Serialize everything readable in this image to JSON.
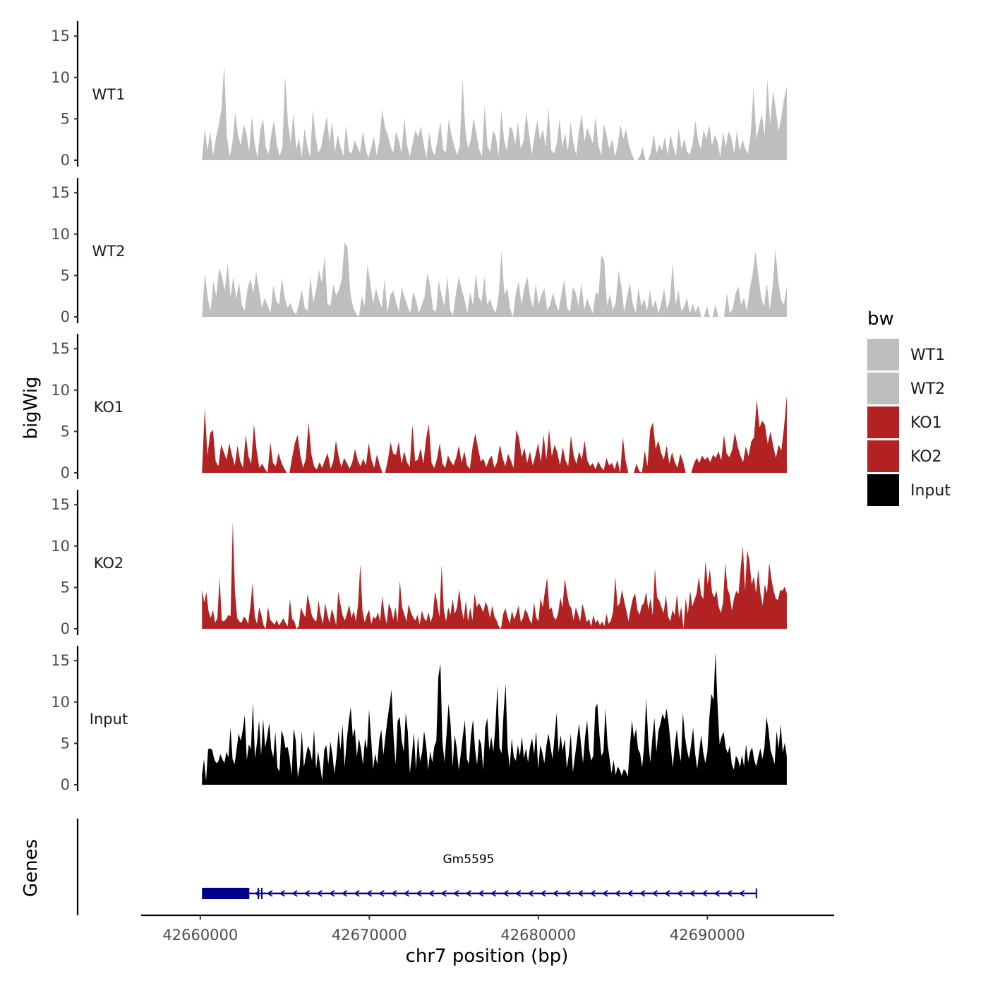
{
  "chart_data": {
    "type": "area",
    "xlabel": "chr7 position (bp)",
    "ylabel": "bigWig",
    "genes_label": "Genes",
    "xlim": [
      42656500,
      42697500
    ],
    "data_range": [
      42660100,
      42694700
    ],
    "x_ticks": [
      42660000,
      42670000,
      42680000,
      42690000
    ],
    "x_tick_labels": [
      "42660000",
      "42670000",
      "42680000",
      "42690000"
    ],
    "ylim": [
      0,
      16
    ],
    "y_ticks": [
      0,
      5,
      10,
      15
    ],
    "y_tick_labels": [
      "0",
      "5",
      "10",
      "15"
    ],
    "legend": {
      "title": "bw",
      "items": [
        {
          "label": "WT1",
          "color": "#bebebe"
        },
        {
          "label": "WT2",
          "color": "#bebebe"
        },
        {
          "label": "KO1",
          "color": "#b22222"
        },
        {
          "label": "KO2",
          "color": "#b22222"
        },
        {
          "label": "Input",
          "color": "#000000"
        }
      ]
    },
    "series": [
      {
        "name": "WT1",
        "color": "#bebebe",
        "values": [
          0,
          3.8,
          1.2,
          3.5,
          0.6,
          2.6,
          4.2,
          6.1,
          11.5,
          2.9,
          0.4,
          2.2,
          5.8,
          3.0,
          1.8,
          4.3,
          3.4,
          1.0,
          5.4,
          2.0,
          0.3,
          3.5,
          5.1,
          1.6,
          0.7,
          3.1,
          4.8,
          1.9,
          0.5,
          1.5,
          10.2,
          4.5,
          2.1,
          5.7,
          1.3,
          2.6,
          0.4,
          3.8,
          1.7,
          0.4,
          6.2,
          2.8,
          0.9,
          1.6,
          3.5,
          5.3,
          2.2,
          4.6,
          1.0,
          3.1,
          1.6,
          0.5,
          4.3,
          1.1,
          0.8,
          2.4,
          1.7,
          0.9,
          3.5,
          1.5,
          0.3,
          1.4,
          2.9,
          0.6,
          2.2,
          6.2,
          4.0,
          3.1,
          1.7,
          0.9,
          3.5,
          2.4,
          0.8,
          5.1,
          1.8,
          0.4,
          2.1,
          3.6,
          2.8,
          4.1,
          1.9,
          0.3,
          3.4,
          1.2,
          0.6,
          2.5,
          4.7,
          1.3,
          0.9,
          5.0,
          3.0,
          1.8,
          0.6,
          1.7,
          9.9,
          3.7,
          1.4,
          2.5,
          5.1,
          3.2,
          1.3,
          0.5,
          6.7,
          1.7,
          1.0,
          3.6,
          2.9,
          0.5,
          6.0,
          2.4,
          1.1,
          4.1,
          3.7,
          1.9,
          4.6,
          1.4,
          2.3,
          5.8,
          3.2,
          0.7,
          3.0,
          4.9,
          2.5,
          3.8,
          1.6,
          6.4,
          1.2,
          0.8,
          2.0,
          5.0,
          1.6,
          3.3,
          1.1,
          4.6,
          2.1,
          0.6,
          3.6,
          5.5,
          2.3,
          3.9,
          3.0,
          2.0,
          5.3,
          1.8,
          0.6,
          4.4,
          3.0,
          1.3,
          2.6,
          0.4,
          1.9,
          4.3,
          2.6,
          3.8,
          1.9,
          0.8,
          0,
          0,
          0.5,
          1.6,
          0,
          0,
          0.9,
          3.2,
          0.8,
          1.9,
          1.2,
          2.9,
          0.6,
          3.1,
          1.7,
          0.5,
          3.9,
          1.3,
          2.6,
          1.0,
          0.7,
          1.9,
          4.8,
          2.4,
          1.3,
          3.7,
          2.5,
          4.3,
          1.8,
          3.1,
          2.2,
          0.4,
          3.4,
          1.6,
          3.5,
          2.7,
          0.8,
          3.6,
          1.1,
          2.5,
          1.4,
          0.8,
          3.3,
          8.8,
          2.6,
          4.1,
          5.6,
          3.0,
          9.8,
          4.3,
          8.4,
          6.2,
          3.5,
          5.2,
          7.4,
          8.9
        ]
      },
      {
        "name": "WT2",
        "color": "#bebebe",
        "values": [
          0,
          5.3,
          2.3,
          0.7,
          4.3,
          2.5,
          5.9,
          4.9,
          3.1,
          6.5,
          2.4,
          4.9,
          2.1,
          4.2,
          1.4,
          0.8,
          3.5,
          4.6,
          2.9,
          5.4,
          3.3,
          1.1,
          2.3,
          1.4,
          0.5,
          3.8,
          2.0,
          1.4,
          4.7,
          2.3,
          1.1,
          1.7,
          0.7,
          0.3,
          1.6,
          3.3,
          1.1,
          0.7,
          4.9,
          1.7,
          3.3,
          5.7,
          4.1,
          7.4,
          1.6,
          1.3,
          3.9,
          2.6,
          3.2,
          4.6,
          9.0,
          8.4,
          2.9,
          1.1,
          0.4,
          0,
          2.5,
          1.3,
          6.4,
          4.0,
          1.6,
          3.5,
          2.1,
          1.1,
          4.6,
          0.5,
          2.6,
          3.2,
          1.8,
          0.6,
          3.6,
          2.4,
          1.4,
          0.4,
          3.0,
          2.1,
          0.5,
          1.4,
          2.4,
          5.3,
          3.7,
          0.9,
          0.6,
          4.4,
          2.6,
          1.3,
          4.9,
          0.8,
          0.2,
          2.8,
          4.9,
          3.4,
          2.1,
          0.5,
          3.0,
          1.4,
          5.2,
          2.4,
          1.8,
          4.9,
          1.4,
          2.2,
          1.0,
          0.5,
          2.7,
          8.0,
          2.7,
          3.5,
          1.0,
          0,
          2.8,
          4.3,
          1.5,
          3.5,
          4.9,
          2.5,
          1.1,
          4.0,
          1.5,
          2.6,
          3.5,
          0.8,
          1.4,
          2.9,
          1.6,
          0.7,
          2.8,
          4.5,
          1.1,
          0.6,
          3.6,
          2.9,
          1.3,
          4.1,
          0.9,
          2.2,
          1.3,
          0.4,
          3.0,
          2.7,
          7.5,
          6.8,
          1.3,
          2.8,
          0.8,
          1.7,
          5.6,
          3.7,
          0.6,
          2.5,
          4.1,
          1.6,
          0.5,
          3.5,
          1.3,
          2.2,
          0.7,
          3.2,
          1.1,
          2.1,
          0.4,
          1.7,
          3.4,
          0.9,
          2.1,
          6.5,
          1.4,
          3.3,
          0.7,
          1.2,
          2.3,
          0.4,
          1.6,
          0.6,
          1.4,
          0,
          0,
          1.3,
          0,
          0,
          1.5,
          0,
          0,
          0,
          2.9,
          0.4,
          0.9,
          2.8,
          3.7,
          1.4,
          2.3,
          0.7,
          3.4,
          5.1,
          7.9,
          5.0,
          2.4,
          1.2,
          4.1,
          0.9,
          3.6,
          8.2,
          4.3,
          2.0,
          1.5,
          3.8
        ]
      },
      {
        "name": "KO1",
        "color": "#b22222",
        "values": [
          0,
          7.8,
          2.1,
          4.8,
          5.2,
          1.4,
          0.8,
          3.4,
          2.5,
          1.6,
          3.6,
          2.1,
          0.9,
          3.3,
          1.4,
          0.6,
          4.6,
          2.0,
          1.1,
          5.9,
          2.7,
          0.6,
          1.1,
          0.5,
          0,
          3.7,
          1.2,
          0.8,
          2.4,
          1.3,
          0.6,
          0,
          0,
          1.9,
          3.6,
          4.6,
          2.1,
          0.6,
          1.7,
          6.1,
          2.3,
          0.8,
          0.4,
          1.3,
          0.6,
          1.6,
          2.4,
          0.5,
          1.3,
          3.9,
          2.0,
          0.7,
          1.8,
          1.2,
          0.5,
          1.3,
          2.9,
          1.5,
          0.8,
          1.7,
          0.9,
          3.6,
          1.6,
          0.6,
          2.2,
          1.0,
          0,
          0,
          1.5,
          3.7,
          2.3,
          2.2,
          3.8,
          1.1,
          2.6,
          1.3,
          0.7,
          5.8,
          1.4,
          1.6,
          3.0,
          1.1,
          4.1,
          5.9,
          1.2,
          0.6,
          1.7,
          3.6,
          1.1,
          0.6,
          2.1,
          1.4,
          0.9,
          1.8,
          3.3,
          1.2,
          2.6,
          0.9,
          0.5,
          3.1,
          4.8,
          3.0,
          1.4,
          1.7,
          0.7,
          1.6,
          2.1,
          0.6,
          1.3,
          3.4,
          1.8,
          0.8,
          2.3,
          1.5,
          0.6,
          5.2,
          4.2,
          1.9,
          3.0,
          1.2,
          2.6,
          0.9,
          2.1,
          3.6,
          1.3,
          4.6,
          1.6,
          5.2,
          2.0,
          3.4,
          2.5,
          0.9,
          3.1,
          1.5,
          0.8,
          4.5,
          2.1,
          1.1,
          2.6,
          1.6,
          3.9,
          1.5,
          0.8,
          1.2,
          0.4,
          1.4,
          0.7,
          0.3,
          1.8,
          0.9,
          1.2,
          0.4,
          1.6,
          0,
          4.3,
          1.5,
          0,
          0,
          0,
          1.1,
          0.2,
          0,
          2.7,
          0.8,
          5.2,
          6.1,
          2.9,
          3.9,
          2.4,
          1.6,
          3.3,
          1.1,
          2.5,
          1.3,
          0.6,
          2.3,
          1.4,
          0,
          0,
          0,
          1.1,
          1.8,
          1.2,
          2.1,
          1.6,
          1.9,
          1.3,
          2.2,
          1.8,
          2.6,
          1.5,
          4.6,
          2.3,
          1.9,
          2.8,
          4.9,
          3.2,
          2.1,
          1.3,
          3.2,
          2.0,
          3.8,
          4.3,
          8.9,
          5.5,
          6.3,
          5.8,
          3.5,
          5.0,
          3.3,
          1.8,
          3.4,
          2.7,
          5.6,
          9.3
        ]
      },
      {
        "name": "KO2",
        "color": "#b22222",
        "values": [
          4.7,
          3.2,
          4.4,
          2.1,
          1.3,
          2.3,
          0.7,
          1.3,
          6.2,
          1.0,
          0.9,
          1.2,
          1.7,
          1.5,
          12.9,
          4.4,
          1.3,
          0.9,
          0.7,
          1.5,
          1.2,
          0.6,
          2.7,
          5.5,
          1.5,
          0.6,
          2.6,
          1.7,
          0.4,
          0,
          2.7,
          1.1,
          0.8,
          0.5,
          1.1,
          0.4,
          0.8,
          1.3,
          0.7,
          0.3,
          3.6,
          1.2,
          0.9,
          0,
          0.3,
          2.6,
          1.9,
          1.4,
          4.2,
          2.9,
          1.6,
          1.1,
          0.9,
          3.4,
          1.7,
          0.6,
          3.1,
          1.8,
          0.7,
          2.4,
          1.6,
          0.4,
          4.5,
          2.9,
          1.6,
          1.0,
          1.9,
          2.9,
          1.3,
          2.2,
          0.9,
          3.0,
          7.8,
          2.2,
          0.8,
          1.7,
          2.3,
          0.6,
          1.5,
          1.2,
          2.0,
          0.9,
          4.0,
          1.8,
          0.6,
          3.1,
          2.3,
          1.1,
          2.6,
          0.8,
          5.8,
          2.6,
          1.8,
          0.9,
          3.0,
          2.0,
          1.4,
          1.0,
          1.7,
          0.5,
          2.2,
          1.3,
          0.9,
          2.0,
          0.8,
          1.6,
          4.6,
          3.1,
          1.4,
          7.7,
          2.3,
          0.9,
          2.6,
          1.7,
          3.6,
          1.8,
          2.6,
          4.8,
          2.5,
          1.1,
          3.4,
          0.9,
          2.6,
          1.0,
          4.3,
          2.6,
          3.1,
          2.6,
          2.0,
          3.3,
          2.6,
          1.3,
          2.8,
          1.5,
          1.0,
          0.3,
          0,
          1.8,
          2.5,
          1.4,
          0.6,
          2.2,
          1.1,
          1.9,
          2.8,
          0.8,
          1.3,
          2.4,
          1.9,
          1.1,
          0.6,
          3.2,
          1.4,
          0.9,
          3.7,
          2.6,
          4.6,
          6.2,
          2.3,
          2.6,
          1.4,
          1.1,
          1.9,
          3.8,
          2.6,
          6.1,
          4.3,
          2.9,
          2.5,
          1.0,
          2.6,
          1.8,
          0.9,
          3.0,
          2.1,
          0.8,
          1.2,
          0.3,
          1.7,
          0.7,
          1.1,
          0.4,
          0.9,
          0.3,
          1.8,
          0.6,
          1.0,
          2.1,
          6.3,
          2.7,
          3.1,
          4.7,
          3.4,
          2.2,
          0.9,
          2.5,
          3.7,
          4.3,
          2.3,
          1.7,
          2.8,
          3.1,
          4.5,
          2.3,
          3.7,
          1.6,
          7.3,
          3.8,
          3.4,
          2.6,
          1.9,
          4.1,
          1.5,
          0.9,
          2.3,
          1.6,
          4.2,
          1.3,
          2.7,
          0,
          3.7,
          1.8,
          4.6,
          2.7,
          3.5,
          4.3,
          6.3,
          4.1,
          3.6,
          8.2,
          5.4,
          7.2,
          4.4,
          3.8,
          4.6,
          2.7,
          1.9,
          3.2,
          8.0,
          4.9,
          4.1,
          2.2,
          3.7,
          4.6,
          4.2,
          7.3,
          10.0,
          4.6,
          9.5,
          8.2,
          5.4,
          6.3,
          4.3,
          7.2,
          4.3,
          2.8,
          5.4,
          4.3,
          8.0,
          6.0,
          4.6,
          3.6,
          3.5,
          4.7,
          4.6,
          5.1,
          4.3
        ]
      },
      {
        "name": "Input",
        "color": "#000000",
        "values": [
          1.2,
          3.1,
          0.5,
          4.3,
          4.4,
          4.2,
          3.1,
          2.6,
          2.8,
          3.7,
          3.1,
          2.6,
          4.0,
          3.3,
          6.9,
          3.1,
          2.5,
          4.3,
          6.2,
          5.3,
          6.6,
          8.4,
          3.0,
          4.9,
          4.3,
          9.9,
          3.2,
          5.1,
          7.8,
          3.5,
          8.0,
          4.5,
          5.8,
          7.5,
          4.3,
          3.3,
          6.4,
          2.1,
          1.6,
          6.6,
          5.8,
          4.4,
          4.6,
          3.3,
          1.2,
          6.8,
          5.4,
          0.9,
          2.3,
          6.5,
          2.1,
          3.5,
          4.7,
          4.1,
          2.9,
          6.6,
          1.9,
          4.1,
          2.2,
          0.5,
          4.2,
          4.8,
          2.5,
          5.2,
          3.7,
          1.3,
          3.4,
          6.5,
          4.2,
          7.3,
          2.1,
          5.3,
          7.6,
          9.4,
          5.8,
          6.8,
          3.4,
          5.6,
          4.4,
          2.4,
          5.6,
          4.3,
          9.1,
          5.6,
          1.9,
          3.8,
          2.4,
          5.4,
          6.7,
          3.6,
          5.8,
          7.9,
          9.6,
          11.5,
          5.9,
          2.5,
          7.7,
          8.2,
          5.4,
          4.0,
          8.7,
          6.4,
          1.4,
          3.6,
          6.3,
          1.8,
          5.9,
          2.8,
          3.9,
          6.5,
          4.8,
          1.8,
          4.1,
          2.7,
          4.6,
          5.3,
          13.1,
          14.6,
          5.2,
          2.7,
          6.1,
          9.8,
          7.3,
          2.2,
          6.0,
          4.5,
          1.8,
          3.7,
          5.9,
          7.8,
          3.1,
          2.5,
          6.0,
          7.9,
          4.3,
          2.4,
          5.6,
          4.9,
          1.8,
          6.9,
          8.1,
          4.2,
          5.8,
          4.0,
          7.2,
          12.0,
          4.5,
          3.8,
          8.7,
          12.2,
          4.5,
          2.1,
          5.6,
          3.4,
          2.9,
          4.8,
          3.5,
          5.8,
          3.2,
          4.4,
          2.7,
          4.6,
          5.6,
          3.7,
          6.5,
          1.9,
          4.8,
          3.9,
          2.6,
          4.7,
          6.2,
          4.7,
          3.1,
          5.8,
          8.7,
          3.9,
          6.0,
          4.1,
          5.6,
          2.0,
          3.6,
          6.2,
          1.5,
          3.4,
          5.3,
          7.4,
          4.9,
          2.6,
          5.8,
          7.8,
          4.3,
          2.9,
          3.5,
          9.3,
          9.8,
          6.2,
          3.5,
          4.0,
          9.2,
          5.0,
          3.2,
          1.4,
          3.0,
          1.2,
          2.2,
          1.8,
          1.1,
          1.9,
          1.6,
          1.0,
          4.7,
          7.8,
          5.6,
          6.8,
          4.3,
          3.8,
          2.1,
          4.8,
          10.4,
          5.4,
          2.7,
          5.6,
          8.1,
          4.0,
          6.5,
          7.4,
          8.6,
          7.9,
          9.2,
          7.4,
          4.8,
          2.1,
          4.7,
          6.7,
          4.2,
          2.8,
          8.7,
          5.9,
          4.2,
          3.1,
          4.8,
          6.9,
          3.8,
          1.9,
          4.0,
          6.0,
          3.9,
          2.6,
          4.0,
          8.2,
          11.0,
          10.2,
          16.0,
          9.7,
          4.9,
          5.8,
          6.4,
          4.5,
          3.8,
          4.7,
          2.5,
          1.8,
          3.5,
          3.1,
          2.1,
          3.6,
          2.2,
          4.9,
          2.7,
          4.0,
          4.5,
          3.0,
          2.2,
          3.4,
          4.4,
          3.1,
          4.5,
          8.2,
          6.7,
          4.2,
          3.4,
          2.5,
          6.5,
          4.4,
          7.3,
          3.9,
          5.1,
          3.4
        ]
      }
    ],
    "genes": [
      {
        "name": "Gm5595",
        "strand": "-",
        "start": 42660100,
        "end": 42692900,
        "thick_start": 42660100,
        "thick_end": 42662900,
        "color": "#00008b"
      }
    ]
  }
}
